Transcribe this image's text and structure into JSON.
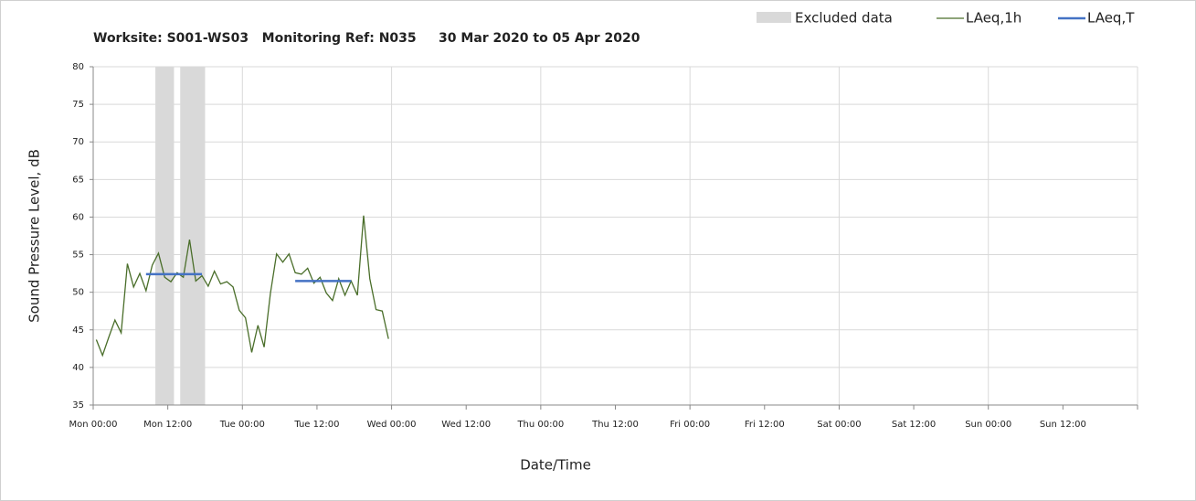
{
  "chart_data": {
    "type": "line",
    "title": "Worksite: S001-WS03   Monitoring Ref: N035     30 Mar 2020 to 05 Apr 2020",
    "xlabel": "Date/Time",
    "ylabel": "Sound Pressure Level, dB",
    "xlim": [
      0,
      168
    ],
    "ylim": [
      35,
      80
    ],
    "yticks": [
      35,
      40,
      45,
      50,
      55,
      60,
      65,
      70,
      75,
      80
    ],
    "xticks": [
      {
        "value": 0,
        "label": "Mon 00:00"
      },
      {
        "value": 12,
        "label": "Mon 12:00"
      },
      {
        "value": 24,
        "label": "Tue 00:00"
      },
      {
        "value": 36,
        "label": "Tue 12:00"
      },
      {
        "value": 48,
        "label": "Wed 00:00"
      },
      {
        "value": 60,
        "label": "Wed 12:00"
      },
      {
        "value": 72,
        "label": "Thu 00:00"
      },
      {
        "value": 84,
        "label": "Thu 12:00"
      },
      {
        "value": 96,
        "label": "Fri 00:00"
      },
      {
        "value": 108,
        "label": "Fri 12:00"
      },
      {
        "value": 120,
        "label": "Sat 00:00"
      },
      {
        "value": 132,
        "label": "Sat 12:00"
      },
      {
        "value": 144,
        "label": "Sun 00:00"
      },
      {
        "value": 156,
        "label": "Sun 12:00"
      },
      {
        "value": 168,
        "label": ""
      }
    ],
    "excluded": {
      "name": "Excluded data",
      "color": "#d9d9d9",
      "ranges": [
        [
          10,
          13
        ],
        [
          14,
          18
        ]
      ]
    },
    "series": [
      {
        "name": "LAeq,1h",
        "color": "#4a6e2a",
        "x": [
          0.5,
          1.5,
          2.5,
          3.5,
          4.5,
          5.5,
          6.5,
          7.5,
          8.5,
          9.5,
          10.5,
          11.5,
          12.5,
          13.5,
          14.5,
          15.5,
          16.5,
          17.5,
          18.5,
          19.5,
          20.5,
          21.5,
          22.5,
          23.5,
          24.5,
          25.5,
          26.5,
          27.5,
          28.5,
          29.5,
          30.5,
          31.5,
          32.5,
          33.5,
          34.5,
          35.5,
          36.5,
          37.5,
          38.5,
          39.5,
          40.5,
          41.5,
          42.5,
          43.5,
          44.5,
          45.5,
          46.5,
          47.5
        ],
        "values": [
          43.7,
          41.6,
          44,
          46.3,
          44.6,
          53.8,
          50.7,
          52.5,
          50.2,
          53.6,
          55.2,
          52,
          51.4,
          52.6,
          52,
          57,
          51.5,
          52.2,
          50.8,
          52.8,
          51.1,
          51.4,
          50.7,
          47.6,
          46.6,
          42,
          45.6,
          42.7,
          49.8,
          55.1,
          54,
          55.1,
          52.6,
          52.4,
          53.2,
          51.2,
          52,
          49.9,
          48.9,
          51.8,
          49.6,
          51.5,
          49.6,
          60.2,
          51.8,
          47.7,
          47.5,
          43.8
        ]
      },
      {
        "name": "LAeq,T",
        "color": "#4472c4",
        "width": 2.5,
        "x": [
          8.5,
          17.5,
          null,
          32.5,
          41.5
        ],
        "values": [
          52.4,
          52.4,
          null,
          51.5,
          51.5
        ]
      }
    ]
  }
}
